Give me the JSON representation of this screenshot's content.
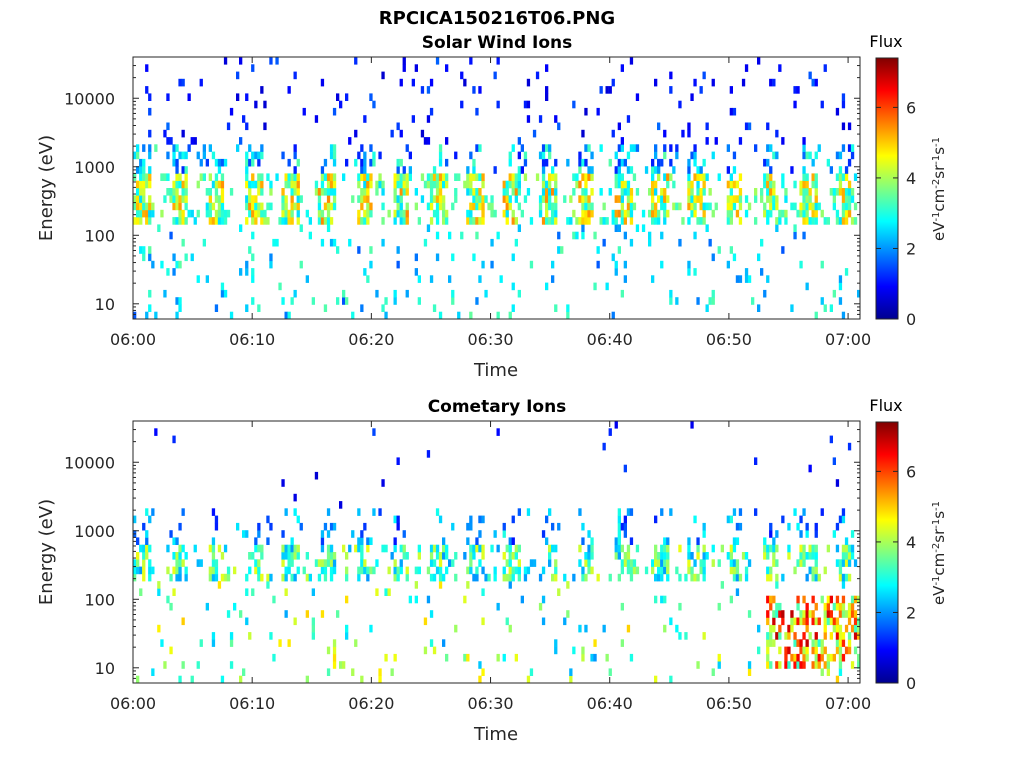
{
  "figure_title": "RPCICA150216T06.PNG",
  "colormap": [
    "#00008f",
    "#0000ff",
    "#0080ff",
    "#00ffff",
    "#80ff80",
    "#ffff00",
    "#ff8000",
    "#ff0000",
    "#800000"
  ],
  "chart_data": [
    {
      "type": "heatmap",
      "title": "Solar Wind Ions",
      "xlabel": "Time",
      "ylabel": "Energy (eV)",
      "y_scale": "log",
      "ylim": [
        6,
        40000
      ],
      "xlim": [
        "06:00",
        "07:01"
      ],
      "x_ticks": [
        "06:00",
        "06:10",
        "06:20",
        "06:30",
        "06:40",
        "06:50",
        "07:00"
      ],
      "y_ticks": [
        "10",
        "100",
        "1000",
        "10000"
      ],
      "colorbar": {
        "label": "Flux",
        "units": "eV-1cm-2sr-1s-1",
        "range": [
          0,
          7.4
        ],
        "ticks": [
          "0",
          "2",
          "4",
          "6"
        ]
      },
      "features": [
        {
          "energy_range_eV": [
            150,
            800
          ],
          "flux_range": [
            3,
            5.5
          ],
          "note": "periodic ~3 min bands"
        },
        {
          "energy_range_eV": [
            6,
            40000
          ],
          "flux_range": [
            0.5,
            2
          ],
          "note": "sparse background counts"
        }
      ]
    },
    {
      "type": "heatmap",
      "title": "Cometary Ions",
      "xlabel": "Time",
      "ylabel": "Energy (eV)",
      "y_scale": "log",
      "ylim": [
        6,
        40000
      ],
      "xlim": [
        "06:00",
        "07:01"
      ],
      "x_ticks": [
        "06:00",
        "06:10",
        "06:20",
        "06:30",
        "06:40",
        "06:50",
        "07:00"
      ],
      "y_ticks": [
        "10",
        "100",
        "1000",
        "10000"
      ],
      "colorbar": {
        "label": "Flux",
        "units": "eV-1cm-2sr-1s-1",
        "range": [
          0,
          7.4
        ],
        "ticks": [
          "0",
          "2",
          "4",
          "6"
        ]
      },
      "features": [
        {
          "energy_range_eV": [
            200,
            600
          ],
          "flux_range": [
            2.5,
            4.5
          ],
          "note": "periodic bands"
        },
        {
          "energy_range_eV": [
            10,
            100
          ],
          "flux_range": [
            3,
            7
          ],
          "note": "enhanced low-energy flux near 06:53-07:01"
        }
      ]
    }
  ]
}
